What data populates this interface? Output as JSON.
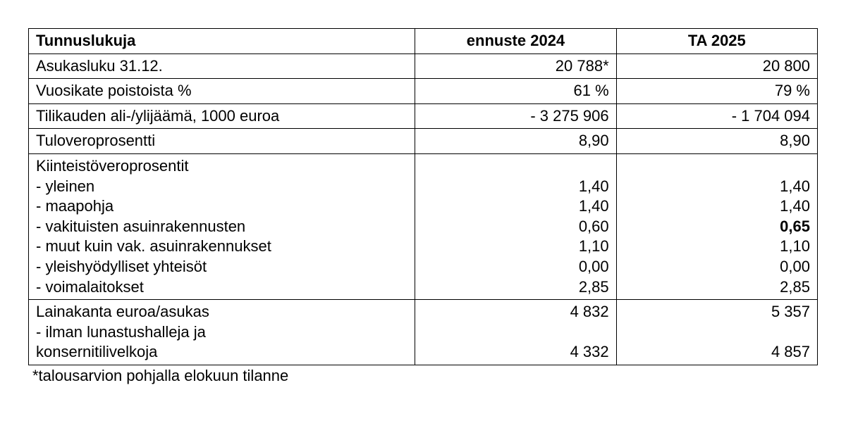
{
  "table": {
    "header": {
      "label": "Tunnuslukuja",
      "col1": "ennuste 2024",
      "col2": "TA 2025"
    },
    "rows": [
      {
        "label": "Asukasluku 31.12.",
        "c1": "20 788*",
        "c2": "20 800"
      },
      {
        "label": "Vuosikate poistoista %",
        "c1": "61 %",
        "c2": "79 %"
      },
      {
        "label": "Tilikauden ali-/ylijäämä, 1000 euroa",
        "c1": "- 3 275 906",
        "c2": "- 1 704 094"
      },
      {
        "label": "Tuloveroprosentti",
        "c1": "8,90",
        "c2": "8,90"
      },
      {
        "label": "Kiinteistöveroprosentit\n - yleinen\n - maapohja\n - vakituisten asuinrakennusten\n - muut kuin vak. asuinrakennukset\n - yleishyödylliset yhteisöt\n - voimalaitokset",
        "c1": "\n1,40\n1,40\n0,60\n1,10\n0,00\n2,85",
        "c2_lines": [
          "",
          "1,40",
          "1,40",
          "0,65",
          "1,10",
          "0,00",
          "2,85"
        ],
        "c2_bold_index": 3
      },
      {
        "label": "Lainakanta euroa/asukas\n - ilman lunastushalleja ja\nkonsernitilivelkoja",
        "c1": "4 832\n\n4 332",
        "c2": "5 357\n\n4 857"
      }
    ],
    "footnote": "*talousarvion pohjalla elokuun tilanne"
  },
  "style": {
    "font_family": "Arial",
    "font_size_pt": 16,
    "text_color": "#000000",
    "border_color": "#000000",
    "background_color": "#ffffff"
  }
}
